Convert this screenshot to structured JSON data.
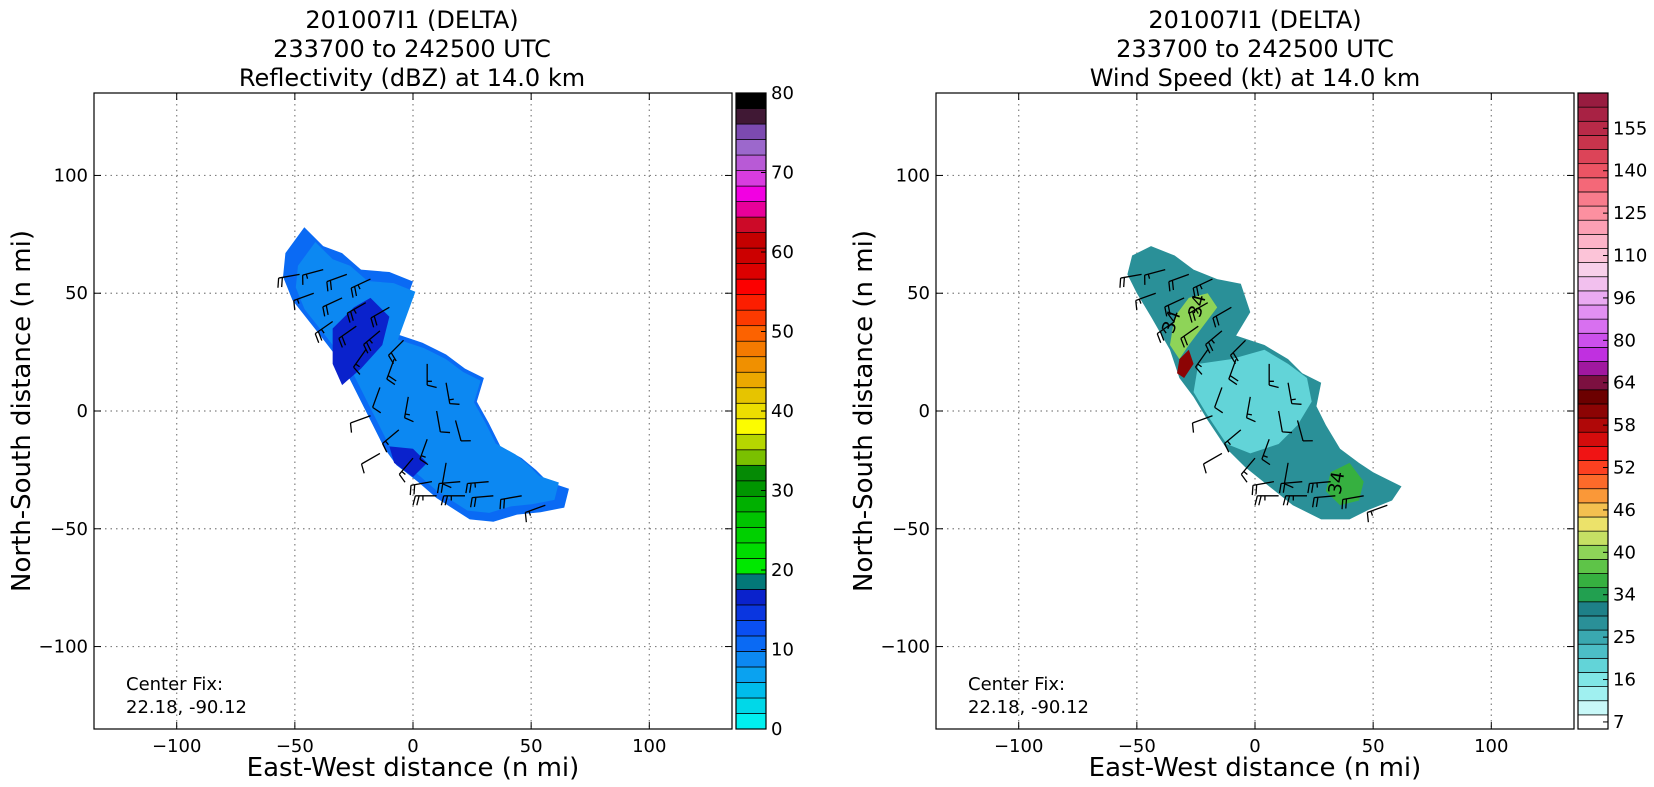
{
  "chart_data": [
    {
      "type": "heatmap",
      "title": [
        "201007I1 (DELTA)",
        "233700 to 242500 UTC",
        "Reflectivity (dBZ) at 14.0 km"
      ],
      "xlabel": "East-West distance (n mi)",
      "ylabel": "North-South distance (n mi)",
      "xlim": [
        -135,
        135
      ],
      "ylim": [
        -135,
        135
      ],
      "xticks": [
        -100,
        -50,
        0,
        50,
        100
      ],
      "yticks": [
        -100,
        -50,
        0,
        50,
        100
      ],
      "grid": true,
      "center_fix": {
        "label": "Center Fix:",
        "value": "22.18, -90.12"
      },
      "colorbar": {
        "min": 0,
        "max": 80,
        "step": 2.5,
        "tick_labels": [
          "0",
          "10",
          "20",
          "30",
          "40",
          "50",
          "60",
          "70",
          "80"
        ],
        "colors": [
          "#00f0f0",
          "#00d8e8",
          "#00bcec",
          "#0aa2f0",
          "#0c88f2",
          "#0a6af4",
          "#0a4ff2",
          "#0a36e0",
          "#0a22cc",
          "#037878",
          "#00e800",
          "#00dc00",
          "#00d000",
          "#00c400",
          "#00b000",
          "#009600",
          "#058a05",
          "#7ac000",
          "#b6d600",
          "#fcfc00",
          "#ecde00",
          "#e6c400",
          "#eca800",
          "#f09000",
          "#f47a00",
          "#fc6200",
          "#fc3a00",
          "#fc1e00",
          "#fc0000",
          "#dc0000",
          "#cc0000",
          "#c40000",
          "#cc0a28",
          "#e8009a",
          "#f200e2",
          "#d83ce0",
          "#b85ad6",
          "#9c68cc",
          "#7c4ab0",
          "#401834",
          "#000000"
        ]
      },
      "data_extent_nmi": {
        "shape": "elongated band oriented NW to SE",
        "outline": [
          [
            -54,
            67
          ],
          [
            -46,
            78
          ],
          [
            -38,
            70
          ],
          [
            -30,
            67
          ],
          [
            -22,
            60
          ],
          [
            -10,
            59
          ],
          [
            0,
            55
          ],
          [
            -8,
            33
          ],
          [
            4,
            29
          ],
          [
            14,
            24
          ],
          [
            22,
            18
          ],
          [
            30,
            14
          ],
          [
            27,
            4
          ],
          [
            32,
            -5
          ],
          [
            37,
            -15
          ],
          [
            46,
            -20
          ],
          [
            52,
            -25
          ],
          [
            57,
            -30
          ],
          [
            66,
            -33
          ],
          [
            64,
            -41
          ],
          [
            54,
            -43
          ],
          [
            44,
            -44
          ],
          [
            34,
            -47
          ],
          [
            24,
            -46
          ],
          [
            10,
            -37
          ],
          [
            2,
            -30
          ],
          [
            -7,
            -23
          ],
          [
            -12,
            -16
          ],
          [
            -18,
            -4
          ],
          [
            -24,
            8
          ],
          [
            -30,
            20
          ],
          [
            -40,
            33
          ],
          [
            -51,
            47
          ],
          [
            -55,
            57
          ]
        ],
        "reflectivity_core": {
          "polygon": [
            [
              -34,
              35
            ],
            [
              -25,
              44
            ],
            [
              -18,
              48
            ],
            [
              -10,
              40
            ],
            [
              -13,
              28
            ],
            [
              -22,
              18
            ],
            [
              -30,
              11
            ],
            [
              -34,
              20
            ]
          ],
          "value_dbz": 22
        },
        "south_core": {
          "polygon": [
            [
              -10,
              -15
            ],
            [
              0,
              -16
            ],
            [
              6,
              -22
            ],
            [
              0,
              -28
            ],
            [
              -8,
              -22
            ]
          ],
          "value_dbz": 21
        },
        "background_dbz": 10
      },
      "wind_barbs": [
        {
          "x": -48,
          "y": 58,
          "spd": 20,
          "dir": 260
        },
        {
          "x": -38,
          "y": 60,
          "spd": 15,
          "dir": 255
        },
        {
          "x": -28,
          "y": 58,
          "spd": 20,
          "dir": 250
        },
        {
          "x": -18,
          "y": 56,
          "spd": 25,
          "dir": 245
        },
        {
          "x": -42,
          "y": 50,
          "spd": 15,
          "dir": 250
        },
        {
          "x": -30,
          "y": 48,
          "spd": 20,
          "dir": 245
        },
        {
          "x": -20,
          "y": 46,
          "spd": 25,
          "dir": 240
        },
        {
          "x": -10,
          "y": 44,
          "spd": 20,
          "dir": 240
        },
        {
          "x": -34,
          "y": 38,
          "spd": 25,
          "dir": 235
        },
        {
          "x": -24,
          "y": 36,
          "spd": 20,
          "dir": 235
        },
        {
          "x": -14,
          "y": 34,
          "spd": 25,
          "dir": 230
        },
        {
          "x": -4,
          "y": 30,
          "spd": 20,
          "dir": 225
        },
        {
          "x": -20,
          "y": 26,
          "spd": 15,
          "dir": 215
        },
        {
          "x": -8,
          "y": 22,
          "spd": 20,
          "dir": 200
        },
        {
          "x": 6,
          "y": 20,
          "spd": 15,
          "dir": 180
        },
        {
          "x": 14,
          "y": 12,
          "spd": 15,
          "dir": 170
        },
        {
          "x": -14,
          "y": 10,
          "spd": 10,
          "dir": 200
        },
        {
          "x": -2,
          "y": 6,
          "spd": 15,
          "dir": 190
        },
        {
          "x": 10,
          "y": 0,
          "spd": 10,
          "dir": 170
        },
        {
          "x": 18,
          "y": -4,
          "spd": 10,
          "dir": 165
        },
        {
          "x": -18,
          "y": -2,
          "spd": 10,
          "dir": 250
        },
        {
          "x": -6,
          "y": -8,
          "spd": 15,
          "dir": 230
        },
        {
          "x": 6,
          "y": -12,
          "spd": 15,
          "dir": 200
        },
        {
          "x": -14,
          "y": -18,
          "spd": 10,
          "dir": 240
        },
        {
          "x": 0,
          "y": -20,
          "spd": 15,
          "dir": 220
        },
        {
          "x": 14,
          "y": -22,
          "spd": 10,
          "dir": 190
        },
        {
          "x": 8,
          "y": -30,
          "spd": 20,
          "dir": 260
        },
        {
          "x": 20,
          "y": -30,
          "spd": 20,
          "dir": 265
        },
        {
          "x": 32,
          "y": -30,
          "spd": 25,
          "dir": 265
        },
        {
          "x": 10,
          "y": -36,
          "spd": 25,
          "dir": 270
        },
        {
          "x": 22,
          "y": -36,
          "spd": 25,
          "dir": 270
        },
        {
          "x": 34,
          "y": -36,
          "spd": 20,
          "dir": 265
        },
        {
          "x": 46,
          "y": -36,
          "spd": 20,
          "dir": 260
        },
        {
          "x": 56,
          "y": -40,
          "spd": 15,
          "dir": 250
        }
      ]
    },
    {
      "type": "heatmap",
      "title": [
        "201007I1 (DELTA)",
        "233700 to 242500 UTC",
        "Wind Speed (kt) at 14.0 km"
      ],
      "xlabel": "East-West distance (n mi)",
      "ylabel": "North-South distance (n mi)",
      "xlim": [
        -135,
        135
      ],
      "ylim": [
        -135,
        135
      ],
      "xticks": [
        -100,
        -50,
        0,
        50,
        100
      ],
      "yticks": [
        -100,
        -50,
        0,
        50,
        100
      ],
      "grid": true,
      "center_fix": {
        "label": "Center Fix:",
        "value": "22.18, -90.12"
      },
      "contour_labels": [
        "34",
        "34",
        "34"
      ],
      "colorbar": {
        "tick_labels": [
          "7",
          "16",
          "25",
          "34",
          "40",
          "46",
          "52",
          "58",
          "64",
          "80",
          "96",
          "110",
          "125",
          "140",
          "155"
        ],
        "colors": [
          "#ffffff",
          "#c8f8f8",
          "#a0f0f0",
          "#80e6e6",
          "#62d4d8",
          "#4cbec6",
          "#3aa8b0",
          "#2a9098",
          "#1e8088",
          "#22a050",
          "#36b040",
          "#5ec448",
          "#8ed458",
          "#c6e064",
          "#ece26a",
          "#f4c050",
          "#fa9838",
          "#fc6a2a",
          "#fc4020",
          "#f01414",
          "#d40c0c",
          "#b00808",
          "#8c0404",
          "#6c0000",
          "#7c1040",
          "#a018a0",
          "#c030e0",
          "#cc50ec",
          "#d870f0",
          "#e290f2",
          "#eaaaf2",
          "#f2c0ee",
          "#f8d0ea",
          "#fcc4d8",
          "#fcb4c8",
          "#fca0b4",
          "#fc90a0",
          "#f87c8c",
          "#f46878",
          "#ec5464",
          "#dc4458",
          "#c8344c",
          "#b82a48",
          "#a82244",
          "#981c40"
        ]
      },
      "data_extent_nmi": {
        "shape": "elongated band oriented NW to SE",
        "outline": [
          [
            -52,
            66
          ],
          [
            -44,
            70
          ],
          [
            -34,
            66
          ],
          [
            -26,
            60
          ],
          [
            -16,
            56
          ],
          [
            -6,
            54
          ],
          [
            -2,
            42
          ],
          [
            -8,
            32
          ],
          [
            4,
            28
          ],
          [
            14,
            22
          ],
          [
            20,
            16
          ],
          [
            28,
            12
          ],
          [
            26,
            2
          ],
          [
            30,
            -6
          ],
          [
            36,
            -16
          ],
          [
            44,
            -22
          ],
          [
            50,
            -26
          ],
          [
            54,
            -28
          ],
          [
            62,
            -32
          ],
          [
            58,
            -38
          ],
          [
            48,
            -42
          ],
          [
            40,
            -46
          ],
          [
            28,
            -46
          ],
          [
            16,
            -40
          ],
          [
            6,
            -32
          ],
          [
            -4,
            -24
          ],
          [
            -12,
            -16
          ],
          [
            -20,
            -4
          ],
          [
            -26,
            6
          ],
          [
            -32,
            14
          ],
          [
            -36,
            26
          ],
          [
            -44,
            40
          ],
          [
            -50,
            50
          ],
          [
            -54,
            58
          ]
        ],
        "light_region": {
          "polygon": [
            [
              -24,
              20
            ],
            [
              -10,
              22
            ],
            [
              4,
              26
            ],
            [
              14,
              20
            ],
            [
              22,
              14
            ],
            [
              24,
              4
            ],
            [
              18,
              -6
            ],
            [
              10,
              -14
            ],
            [
              -2,
              -18
            ],
            [
              -12,
              -14
            ],
            [
              -20,
              -2
            ],
            [
              -26,
              8
            ]
          ],
          "value_kt": 18
        },
        "high_wind_cores": [
          {
            "polygon": [
              [
                -34,
                40
              ],
              [
                -28,
                48
              ],
              [
                -20,
                50
              ],
              [
                -16,
                44
              ],
              [
                -22,
                36
              ],
              [
                -28,
                28
              ],
              [
                -32,
                22
              ],
              [
                -36,
                28
              ]
            ],
            "value_kt": 40
          },
          {
            "polygon": [
              [
                -32,
                22
              ],
              [
                -28,
                26
              ],
              [
                -26,
                20
              ],
              [
                -30,
                14
              ],
              [
                -33,
                16
              ]
            ],
            "value_kt": 60
          },
          {
            "polygon": [
              [
                32,
                -26
              ],
              [
                40,
                -22
              ],
              [
                46,
                -30
              ],
              [
                44,
                -38
              ],
              [
                36,
                -40
              ],
              [
                30,
                -34
              ]
            ],
            "value_kt": 36
          }
        ],
        "background_kt": 27
      },
      "wind_barbs": [
        {
          "x": -48,
          "y": 58,
          "spd": 20,
          "dir": 260
        },
        {
          "x": -38,
          "y": 60,
          "spd": 15,
          "dir": 255
        },
        {
          "x": -28,
          "y": 58,
          "spd": 20,
          "dir": 250
        },
        {
          "x": -18,
          "y": 56,
          "spd": 25,
          "dir": 245
        },
        {
          "x": -42,
          "y": 50,
          "spd": 15,
          "dir": 250
        },
        {
          "x": -30,
          "y": 48,
          "spd": 20,
          "dir": 245
        },
        {
          "x": -20,
          "y": 46,
          "spd": 25,
          "dir": 240
        },
        {
          "x": -10,
          "y": 44,
          "spd": 20,
          "dir": 240
        },
        {
          "x": -34,
          "y": 38,
          "spd": 25,
          "dir": 235
        },
        {
          "x": -24,
          "y": 36,
          "spd": 20,
          "dir": 235
        },
        {
          "x": -14,
          "y": 34,
          "spd": 25,
          "dir": 230
        },
        {
          "x": -4,
          "y": 30,
          "spd": 20,
          "dir": 225
        },
        {
          "x": -20,
          "y": 26,
          "spd": 15,
          "dir": 215
        },
        {
          "x": -8,
          "y": 22,
          "spd": 20,
          "dir": 200
        },
        {
          "x": 6,
          "y": 20,
          "spd": 15,
          "dir": 180
        },
        {
          "x": 14,
          "y": 12,
          "spd": 15,
          "dir": 170
        },
        {
          "x": -14,
          "y": 10,
          "spd": 10,
          "dir": 200
        },
        {
          "x": -2,
          "y": 6,
          "spd": 15,
          "dir": 190
        },
        {
          "x": 10,
          "y": 0,
          "spd": 10,
          "dir": 170
        },
        {
          "x": 18,
          "y": -4,
          "spd": 10,
          "dir": 165
        },
        {
          "x": -18,
          "y": -2,
          "spd": 10,
          "dir": 250
        },
        {
          "x": -6,
          "y": -8,
          "spd": 15,
          "dir": 230
        },
        {
          "x": 6,
          "y": -12,
          "spd": 15,
          "dir": 200
        },
        {
          "x": -14,
          "y": -18,
          "spd": 10,
          "dir": 240
        },
        {
          "x": 0,
          "y": -20,
          "spd": 15,
          "dir": 220
        },
        {
          "x": 14,
          "y": -22,
          "spd": 10,
          "dir": 190
        },
        {
          "x": 8,
          "y": -30,
          "spd": 20,
          "dir": 260
        },
        {
          "x": 20,
          "y": -30,
          "spd": 20,
          "dir": 265
        },
        {
          "x": 32,
          "y": -30,
          "spd": 25,
          "dir": 265
        },
        {
          "x": 10,
          "y": -36,
          "spd": 25,
          "dir": 270
        },
        {
          "x": 22,
          "y": -36,
          "spd": 25,
          "dir": 270
        },
        {
          "x": 34,
          "y": -36,
          "spd": 20,
          "dir": 265
        },
        {
          "x": 46,
          "y": -36,
          "spd": 20,
          "dir": 260
        },
        {
          "x": 56,
          "y": -40,
          "spd": 15,
          "dir": 250
        }
      ]
    }
  ]
}
